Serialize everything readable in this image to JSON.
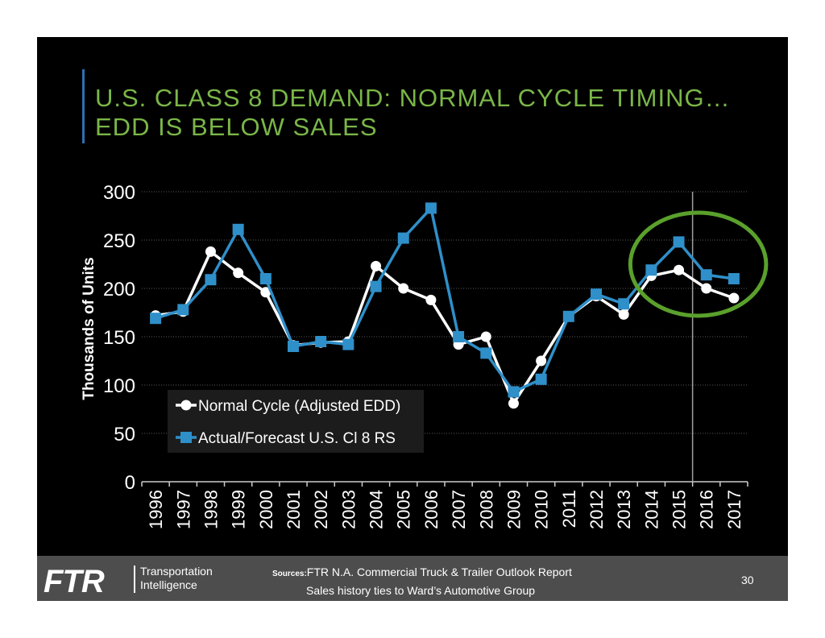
{
  "slide": {
    "title_line1": "U.S. CLASS 8 DEMAND: NORMAL CYCLE TIMING…",
    "title_line2": "EDD IS BELOW SALES",
    "page_number": "30"
  },
  "footer": {
    "logo_text": "FTR",
    "logo_sub_line1": "Transportation",
    "logo_sub_line2": "Intelligence",
    "sources_label": "Sources:",
    "sources_line1": "FTR N.A. Commercial Truck & Trailer Outlook Report",
    "sources_line2": "Sales history ties to Ward’s Automotive Group"
  },
  "colors": {
    "title": "#7ab648",
    "normal_cycle": "#ffffff",
    "actual_forecast": "#2f8fc9",
    "highlight_circle": "#5aa02c",
    "background": "#000000"
  },
  "chart_data": {
    "type": "line",
    "title": "",
    "xlabel": "",
    "ylabel": "Thousands of Units",
    "ylim": [
      0,
      300
    ],
    "yticks": [
      0,
      50,
      100,
      150,
      200,
      250,
      300
    ],
    "grid": true,
    "legend_position": "lower-left",
    "categories": [
      "1996",
      "1997",
      "1998",
      "1999",
      "2000",
      "2001",
      "2002",
      "2003",
      "2004",
      "2005",
      "2006",
      "2007",
      "2008",
      "2009",
      "2010",
      "2011",
      "2012",
      "2013",
      "2014",
      "2015",
      "2016",
      "2017"
    ],
    "series": [
      {
        "name": "Normal Cycle (Adjusted EDD)",
        "marker": "circle",
        "values": [
          172,
          176,
          238,
          216,
          196,
          141,
          144,
          145,
          223,
          200,
          188,
          142,
          150,
          81,
          125,
          171,
          192,
          173,
          213,
          219,
          200,
          190
        ]
      },
      {
        "name": "Actual/Forecast U.S. Cl 8 RS",
        "marker": "square",
        "values": [
          169,
          178,
          209,
          261,
          210,
          140,
          145,
          142,
          202,
          252,
          283,
          150,
          133,
          93,
          106,
          171,
          194,
          184,
          219,
          248,
          214,
          210
        ]
      }
    ],
    "forecast_divider_after": "2015",
    "highlight_circle_around": [
      "2014",
      "2015",
      "2016",
      "2017"
    ]
  }
}
